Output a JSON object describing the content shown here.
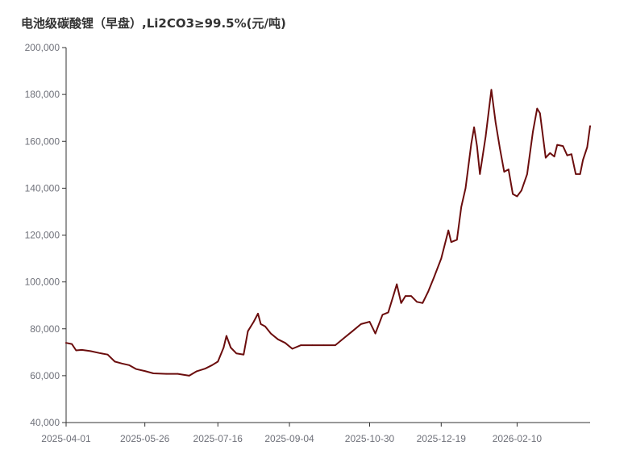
{
  "title": "电池级碳酸锂（早盘）,Li2CO3≥99.5%(元/吨)",
  "colors": {
    "line": "#6b0d0d",
    "axis": "#333333",
    "text": "#6e7079"
  },
  "chart_data": {
    "type": "line",
    "title": "电池级碳酸锂（早盘）,Li2CO3≥99.5%(元/吨)",
    "xlabel": "",
    "ylabel": "",
    "ylim": [
      40000,
      200000
    ],
    "y_ticks": [
      "40,000",
      "60,000",
      "80,000",
      "100,000",
      "120,000",
      "140,000",
      "160,000",
      "180,000",
      "200,000"
    ],
    "x_ticks": [
      "2025-04-01",
      "2025-05-26",
      "2025-07-16",
      "2025-09-04",
      "2025-10-30",
      "2025-12-19",
      "2026-02-10"
    ],
    "grid": false,
    "legend": "none",
    "series": [
      {
        "values": [
          [
            "2025-04-01",
            74000
          ],
          [
            "2025-04-05",
            73500
          ],
          [
            "2025-04-08",
            70800
          ],
          [
            "2025-04-12",
            71000
          ],
          [
            "2025-04-18",
            70500
          ],
          [
            "2025-04-24",
            69700
          ],
          [
            "2025-04-30",
            69000
          ],
          [
            "2025-05-05",
            66000
          ],
          [
            "2025-05-10",
            65200
          ],
          [
            "2025-05-15",
            64500
          ],
          [
            "2025-05-20",
            62800
          ],
          [
            "2025-05-26",
            62000
          ],
          [
            "2025-06-01",
            61000
          ],
          [
            "2025-06-10",
            60800
          ],
          [
            "2025-06-18",
            60800
          ],
          [
            "2025-06-26",
            60000
          ],
          [
            "2025-07-01",
            61800
          ],
          [
            "2025-07-07",
            63000
          ],
          [
            "2025-07-12",
            64500
          ],
          [
            "2025-07-16",
            66000
          ],
          [
            "2025-07-20",
            72000
          ],
          [
            "2025-07-22",
            77000
          ],
          [
            "2025-07-25",
            72000
          ],
          [
            "2025-07-29",
            69500
          ],
          [
            "2025-08-03",
            69000
          ],
          [
            "2025-08-06",
            79000
          ],
          [
            "2025-08-10",
            83000
          ],
          [
            "2025-08-13",
            86500
          ],
          [
            "2025-08-15",
            82000
          ],
          [
            "2025-08-18",
            81000
          ],
          [
            "2025-08-22",
            78000
          ],
          [
            "2025-08-27",
            75500
          ],
          [
            "2025-09-01",
            74000
          ],
          [
            "2025-09-06",
            71500
          ],
          [
            "2025-09-12",
            73000
          ],
          [
            "2025-09-20",
            73000
          ],
          [
            "2025-09-28",
            73000
          ],
          [
            "2025-10-06",
            73000
          ],
          [
            "2025-10-12",
            76000
          ],
          [
            "2025-10-18",
            79000
          ],
          [
            "2025-10-24",
            82000
          ],
          [
            "2025-10-30",
            83000
          ],
          [
            "2025-11-03",
            78000
          ],
          [
            "2025-11-08",
            86000
          ],
          [
            "2025-11-12",
            87000
          ],
          [
            "2025-11-16",
            95000
          ],
          [
            "2025-11-18",
            99000
          ],
          [
            "2025-11-21",
            91000
          ],
          [
            "2025-11-24",
            94000
          ],
          [
            "2025-11-28",
            94000
          ],
          [
            "2025-12-02",
            91500
          ],
          [
            "2025-12-06",
            91000
          ],
          [
            "2025-12-10",
            96000
          ],
          [
            "2025-12-14",
            102000
          ],
          [
            "2025-12-19",
            110000
          ],
          [
            "2025-12-24",
            122000
          ],
          [
            "2025-12-26",
            117000
          ],
          [
            "2025-12-30",
            118000
          ],
          [
            "2026-01-02",
            132000
          ],
          [
            "2026-01-05",
            140000
          ],
          [
            "2026-01-09",
            159000
          ],
          [
            "2026-01-11",
            166000
          ],
          [
            "2026-01-13",
            158000
          ],
          [
            "2026-01-15",
            146000
          ],
          [
            "2026-01-19",
            162000
          ],
          [
            "2026-01-23",
            182000
          ],
          [
            "2026-01-26",
            168000
          ],
          [
            "2026-01-29",
            157000
          ],
          [
            "2026-02-01",
            147000
          ],
          [
            "2026-02-04",
            148000
          ],
          [
            "2026-02-07",
            137500
          ],
          [
            "2026-02-10",
            136500
          ],
          [
            "2026-02-13",
            139000
          ],
          [
            "2026-02-17",
            146000
          ],
          [
            "2026-02-21",
            164000
          ],
          [
            "2026-02-24",
            174000
          ],
          [
            "2026-02-26",
            172000
          ],
          [
            "2026-03-02",
            153000
          ],
          [
            "2026-03-05",
            155000
          ],
          [
            "2026-03-08",
            153500
          ],
          [
            "2026-03-10",
            158500
          ],
          [
            "2026-03-14",
            158000
          ],
          [
            "2026-03-17",
            154000
          ],
          [
            "2026-03-20",
            154500
          ],
          [
            "2026-03-23",
            146000
          ],
          [
            "2026-03-26",
            146000
          ],
          [
            "2026-03-28",
            152000
          ],
          [
            "2026-03-31",
            157500
          ],
          [
            "2026-04-02",
            166500
          ]
        ]
      }
    ]
  }
}
